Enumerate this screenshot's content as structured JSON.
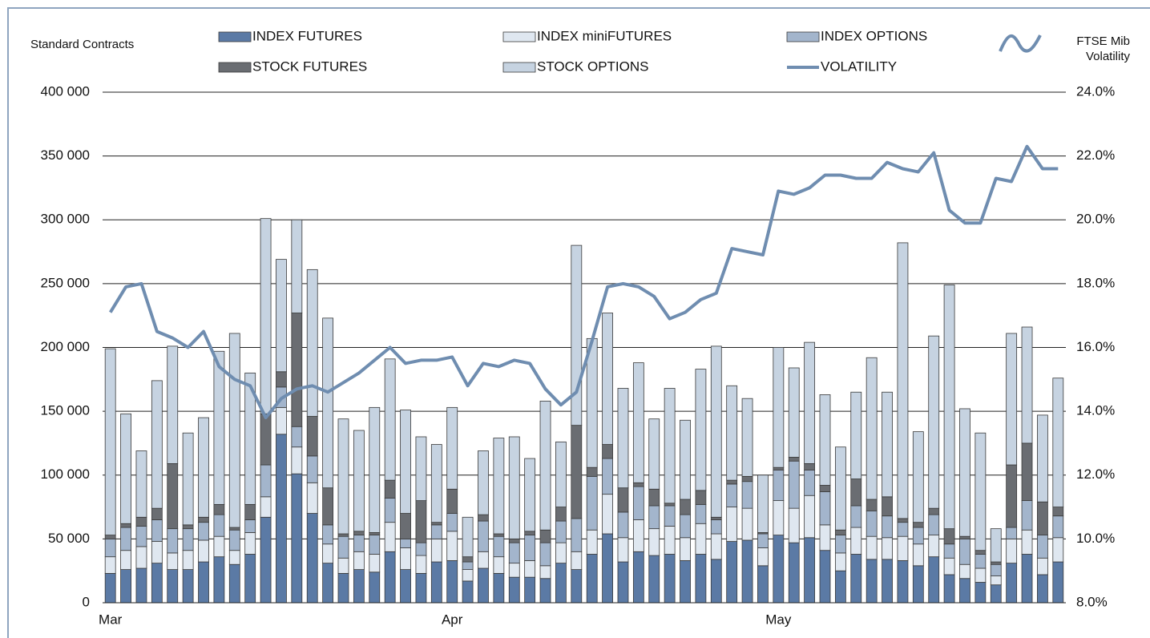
{
  "chart_data": {
    "type": "bar",
    "stacked": true,
    "ylabel": "Standard Contracts",
    "y2label": [
      "FTSE Mib",
      "Volatility"
    ],
    "categories": [
      "Mar",
      null,
      null,
      null,
      null,
      null,
      null,
      null,
      null,
      null,
      null,
      null,
      null,
      null,
      null,
      null,
      null,
      null,
      null,
      null,
      null,
      null,
      "Apr",
      null,
      null,
      null,
      null,
      null,
      null,
      null,
      null,
      null,
      null,
      null,
      null,
      null,
      null,
      null,
      null,
      null,
      null,
      null,
      null,
      "May",
      null,
      null,
      null,
      null,
      null,
      null,
      null,
      null,
      null,
      null,
      null,
      null,
      null,
      null,
      null,
      null,
      null,
      null
    ],
    "ylim": [
      0,
      400000
    ],
    "yticks": [
      0,
      {
        "value": 50000,
        "label": "50 000"
      },
      {
        "value": 100000,
        "label": "100 000"
      },
      {
        "value": 150000,
        "label": "150 000"
      },
      {
        "value": 200000,
        "label": "200 000"
      },
      {
        "value": 250000,
        "label": "250 000"
      },
      {
        "value": 300000,
        "label": "300 000"
      },
      {
        "value": 350000,
        "label": "350 000"
      },
      {
        "value": 400000,
        "label": "400 000"
      }
    ],
    "y2lim": [
      8,
      24
    ],
    "y2ticks": [
      {
        "value": 8,
        "label": "8.0%"
      },
      {
        "value": 10,
        "label": "10.0%"
      },
      {
        "value": 12,
        "label": "12.0%"
      },
      {
        "value": 14,
        "label": "14.0%"
      },
      {
        "value": 16,
        "label": "16.0%"
      },
      {
        "value": 18,
        "label": "18.0%"
      },
      {
        "value": 20,
        "label": "20.0%"
      },
      {
        "value": 22,
        "label": "22.0%"
      },
      {
        "value": 24,
        "label": "24.0%"
      }
    ],
    "grid": true,
    "series": [
      {
        "name": "INDEX FUTURES",
        "color": "#5b7aa5",
        "values": [
          23000,
          26000,
          27000,
          31000,
          26000,
          26000,
          32000,
          36000,
          30000,
          38000,
          67000,
          132000,
          101000,
          70000,
          31000,
          23000,
          26000,
          24000,
          40000,
          26000,
          23000,
          32000,
          33000,
          17000,
          27000,
          23000,
          20000,
          20000,
          19000,
          31000,
          26000,
          38000,
          54000,
          32000,
          40000,
          37000,
          38000,
          33000,
          38000,
          34000,
          48000,
          49000,
          29000,
          53000,
          47000,
          51000,
          41000,
          25000,
          38000,
          34000,
          34000,
          33000,
          29000,
          36000,
          22000,
          19000,
          16000,
          14000,
          31000,
          38000,
          22000,
          32000
        ]
      },
      {
        "name": "INDEX miniFUTURES",
        "color": "#dfe7f0",
        "values": [
          13000,
          15000,
          17000,
          17000,
          13000,
          15000,
          17000,
          16000,
          11000,
          17000,
          16000,
          21000,
          21000,
          24000,
          15000,
          12000,
          14000,
          14000,
          23000,
          17000,
          14000,
          18000,
          23000,
          9000,
          13000,
          13000,
          11000,
          13000,
          10000,
          16000,
          14000,
          19000,
          31000,
          19000,
          25000,
          21000,
          22000,
          18000,
          24000,
          20000,
          27000,
          25000,
          14000,
          27000,
          27000,
          33000,
          20000,
          14000,
          21000,
          18000,
          17000,
          19000,
          17000,
          17000,
          13000,
          11000,
          11000,
          7000,
          19000,
          19000,
          13000,
          19000
        ]
      },
      {
        "name": "INDEX OPTIONS",
        "color": "#a3b5cc",
        "values": [
          14000,
          18000,
          16000,
          17000,
          19000,
          17000,
          14000,
          17000,
          16000,
          10000,
          25000,
          16000,
          16000,
          21000,
          15000,
          17000,
          13000,
          15000,
          19000,
          7000,
          10000,
          11000,
          14000,
          6000,
          24000,
          16000,
          16000,
          20000,
          18000,
          17000,
          26000,
          42000,
          28000,
          20000,
          26000,
          18000,
          16000,
          18000,
          15000,
          11000,
          18000,
          21000,
          11000,
          24000,
          37000,
          20000,
          26000,
          14000,
          17000,
          20000,
          17000,
          11000,
          13000,
          16000,
          11000,
          20000,
          11000,
          9000,
          9000,
          23000,
          18000,
          17000
        ]
      },
      {
        "name": "STOCK FUTURES",
        "color": "#6a6d72",
        "values": [
          3000,
          3000,
          7000,
          9000,
          51000,
          3000,
          4000,
          8000,
          2000,
          12000,
          40000,
          12000,
          89000,
          31000,
          29000,
          2000,
          3000,
          2000,
          14000,
          20000,
          33000,
          2000,
          19000,
          4000,
          5000,
          2000,
          3000,
          3000,
          10000,
          11000,
          73000,
          7000,
          11000,
          19000,
          3000,
          13000,
          2000,
          12000,
          11000,
          2000,
          3000,
          4000,
          1000,
          2000,
          3000,
          5000,
          5000,
          4000,
          21000,
          9000,
          15000,
          3000,
          4000,
          5000,
          12000,
          2000,
          3000,
          2000,
          49000,
          45000,
          26000,
          7000
        ]
      },
      {
        "name": "STOCK OPTIONS",
        "color": "#c6d3e1",
        "values": [
          146000,
          86000,
          52000,
          100000,
          92000,
          72000,
          78000,
          120000,
          152000,
          103000,
          153000,
          88000,
          73000,
          115000,
          133000,
          90000,
          79000,
          98000,
          95000,
          81000,
          50000,
          61000,
          64000,
          31000,
          50000,
          75000,
          80000,
          57000,
          101000,
          51000,
          141000,
          101000,
          103000,
          78000,
          94000,
          55000,
          90000,
          62000,
          95000,
          134000,
          74000,
          61000,
          45000,
          94000,
          70000,
          95000,
          71000,
          65000,
          68000,
          111000,
          82000,
          216000,
          71000,
          135000,
          191000,
          100000,
          92000,
          26000,
          103000,
          91000,
          68000,
          101000
        ]
      },
      {
        "name": "VOLATILITY",
        "color": "#6f8db0",
        "type": "line",
        "axis": "y2",
        "values": [
          17.1,
          17.9,
          18.0,
          16.5,
          16.3,
          16.0,
          16.5,
          15.4,
          15.0,
          14.8,
          13.8,
          14.4,
          14.7,
          14.8,
          14.6,
          14.9,
          15.2,
          15.6,
          16.0,
          15.5,
          15.6,
          15.6,
          15.7,
          14.8,
          15.5,
          15.4,
          15.6,
          15.5,
          14.7,
          14.2,
          14.6,
          16.2,
          17.9,
          18.0,
          17.9,
          17.6,
          16.9,
          17.1,
          17.5,
          17.7,
          19.1,
          19.0,
          18.9,
          20.9,
          20.8,
          21.0,
          21.4,
          21.4,
          21.3,
          21.3,
          21.8,
          21.6,
          21.5,
          22.1,
          20.3,
          19.9,
          19.9,
          21.3,
          21.2,
          22.3,
          21.6,
          21.6
        ]
      }
    ]
  }
}
